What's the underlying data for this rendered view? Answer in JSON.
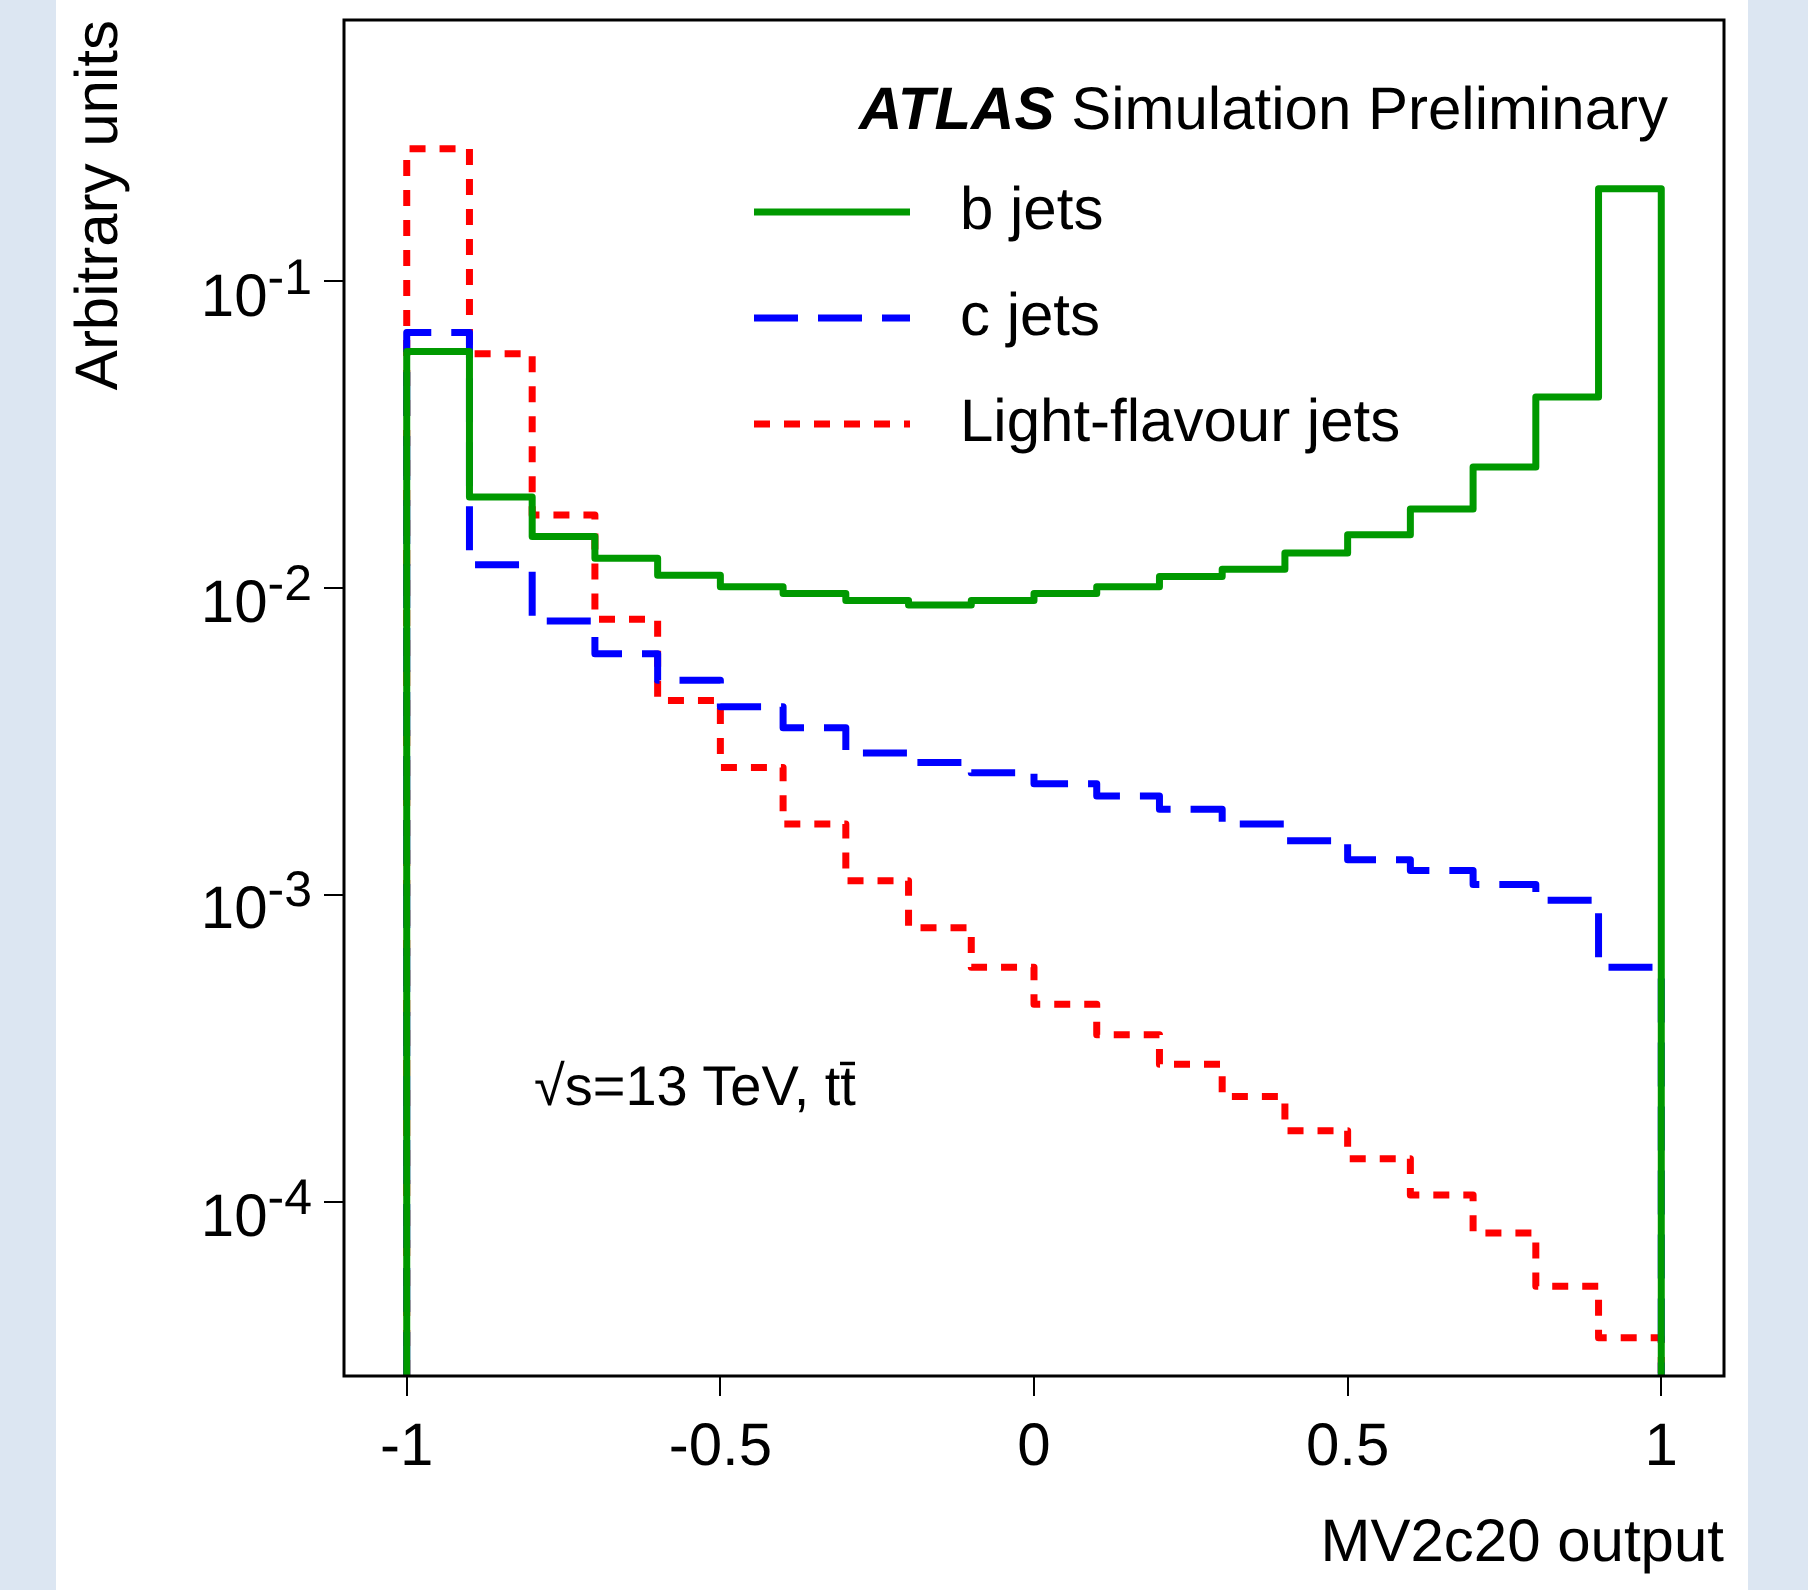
{
  "chart_data": {
    "type": "histogram",
    "xlabel": "MV2c20 output",
    "ylabel": "Arbitrary units",
    "annotations": [
      "ATLAS Simulation Preliminary",
      "√s=13 TeV, tt̄"
    ],
    "bins": [
      -1,
      -0.9,
      -0.8,
      -0.7,
      -0.6,
      -0.5,
      -0.4,
      -0.3,
      -0.2,
      -0.1,
      0,
      0.1,
      0.2,
      0.3,
      0.4,
      0.5,
      0.6,
      0.7,
      0.8,
      0.9,
      1
    ],
    "series": [
      {
        "name": "b jets",
        "color": "#009900",
        "line_style": "solid",
        "values": [
          0.059,
          0.0198,
          0.0147,
          0.0125,
          0.011,
          0.0101,
          0.0096,
          0.0091,
          0.0088,
          0.0091,
          0.0096,
          0.0101,
          0.0109,
          0.0115,
          0.013,
          0.0149,
          0.0181,
          0.0248,
          0.0419,
          0.2
        ]
      },
      {
        "name": "c jets",
        "color": "#0000ff",
        "line_style": "dashed",
        "values": [
          0.068,
          0.0119,
          0.0078,
          0.0061,
          0.005,
          0.0041,
          0.0035,
          0.0029,
          0.0027,
          0.0025,
          0.0023,
          0.0021,
          0.0019,
          0.0017,
          0.0015,
          0.0013,
          0.0012,
          0.00108,
          0.00096,
          0.00058
        ]
      },
      {
        "name": "Light-flavour jets",
        "color": "#ff0000",
        "line_style": "dotted",
        "values": [
          0.27,
          0.058,
          0.0173,
          0.0079,
          0.0043,
          0.0026,
          0.0017,
          0.00111,
          0.00078,
          0.00058,
          0.00044,
          0.00035,
          0.00028,
          0.00022,
          0.00017,
          0.000138,
          0.000105,
          7.9e-05,
          5.3e-05,
          3.6e-05
        ]
      }
    ],
    "xlim": [
      -1.1,
      1.1
    ],
    "xticks": [
      -1,
      -0.5,
      0,
      0.5,
      1
    ],
    "ylim": [
      2.7e-05,
      0.71
    ],
    "yticks": [
      {
        "value": 0.0001,
        "label": "10$^{-4}$"
      },
      {
        "value": 0.001,
        "label": "10$^{-3}$"
      },
      {
        "value": 0.01,
        "label": "10$^{-2}$"
      },
      {
        "value": 0.1,
        "label": "10$^{-1}$"
      }
    ],
    "log": true,
    "grid": false,
    "legend": "top right"
  }
}
